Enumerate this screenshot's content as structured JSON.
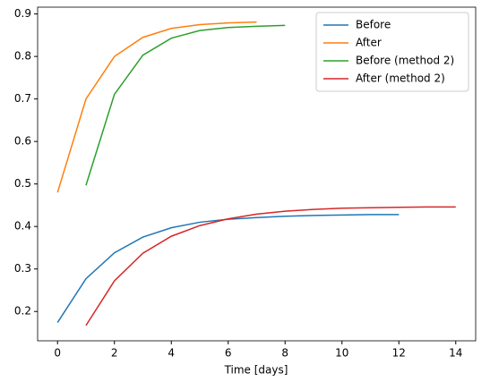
{
  "chart_data": {
    "type": "line",
    "xlabel": "Time [days]",
    "xlim": [
      -0.7,
      14.7
    ],
    "xticks": [
      0,
      2,
      4,
      6,
      8,
      10,
      12,
      14
    ],
    "ylim": [
      0.131,
      0.916
    ],
    "yticks": [
      0.2,
      0.3,
      0.4,
      0.5,
      0.6,
      0.7,
      0.8,
      0.9
    ],
    "legend": "upper right",
    "series": [
      {
        "name": "Before",
        "color": "#1f77b4",
        "x": [
          0,
          1,
          2,
          3,
          4,
          5,
          6,
          7,
          8,
          9,
          10,
          11,
          12
        ],
        "values": [
          0.174,
          0.277,
          0.338,
          0.375,
          0.397,
          0.41,
          0.417,
          0.421,
          0.424,
          0.426,
          0.427,
          0.428,
          0.428
        ]
      },
      {
        "name": "After",
        "color": "#ff7f0e",
        "x": [
          0,
          1,
          2,
          3,
          4,
          5,
          6,
          7
        ],
        "values": [
          0.48,
          0.7,
          0.8,
          0.845,
          0.866,
          0.875,
          0.879,
          0.881
        ]
      },
      {
        "name": "Before (method 2)",
        "color": "#2ca02c",
        "x": [
          1,
          2,
          3,
          4,
          5,
          6,
          7,
          8
        ],
        "values": [
          0.497,
          0.711,
          0.803,
          0.843,
          0.861,
          0.868,
          0.871,
          0.873
        ]
      },
      {
        "name": "After (method 2)",
        "color": "#d62728",
        "x": [
          1,
          2,
          3,
          4,
          5,
          6,
          7,
          8,
          9,
          10,
          11,
          12,
          13,
          14
        ],
        "values": [
          0.167,
          0.272,
          0.337,
          0.377,
          0.402,
          0.418,
          0.429,
          0.436,
          0.44,
          0.443,
          0.444,
          0.445,
          0.446,
          0.446
        ]
      }
    ]
  }
}
